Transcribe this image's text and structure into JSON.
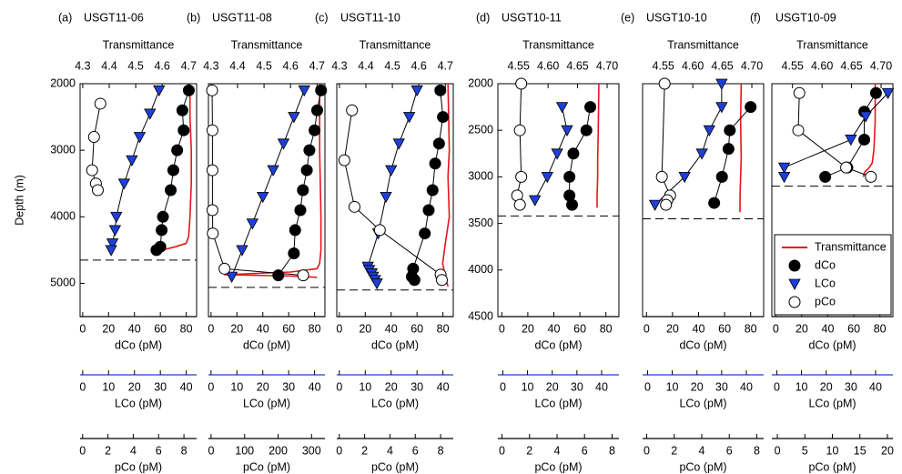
{
  "chart_data": [
    {
      "type": "profile",
      "label": "(a)",
      "title": "USGT11-06",
      "ylabel": "Depth (m)",
      "ylim": [
        2000,
        5500
      ],
      "yticks": [
        2000,
        3000,
        4000,
        5000
      ],
      "bottom_depth": 4650,
      "axes": {
        "transmittance": {
          "label": "Transmittance",
          "xlim": [
            4.29,
            4.73
          ],
          "xticks": [
            4.3,
            4.4,
            4.5,
            4.6,
            4.7
          ],
          "line_color": "#000000"
        },
        "dCo": {
          "label": "dCo (pM)",
          "xlim": [
            -2,
            88
          ],
          "xticks": [
            0,
            20,
            40,
            60,
            80
          ],
          "line_color": "#000000"
        },
        "LCo": {
          "label": "LCo (pM)",
          "xlim": [
            -1,
            44
          ],
          "xticks": [
            0,
            10,
            20,
            30,
            40
          ],
          "line_color": "#1f3fd6"
        },
        "pCo": {
          "label": "pCo (pM)",
          "xlim": [
            -0.2,
            9
          ],
          "xticks": [
            0,
            2,
            4,
            6,
            8
          ],
          "line_color": "#000000"
        }
      },
      "series": [
        {
          "axis": "transmittance",
          "marker": "line",
          "color": "#e8141b",
          "x": [
            4.705,
            4.705,
            4.71,
            4.71,
            4.705,
            4.7,
            4.69,
            4.65,
            4.6,
            4.58
          ],
          "y": [
            2000,
            2500,
            3000,
            3500,
            4000,
            4300,
            4400,
            4450,
            4500,
            4540
          ]
        },
        {
          "axis": "dCo",
          "marker": "filled-circle",
          "color": "#000000",
          "x": [
            82,
            77,
            78,
            73,
            70,
            68,
            62,
            61,
            60,
            57
          ],
          "y": [
            2100,
            2400,
            2700,
            3000,
            3300,
            3600,
            4000,
            4200,
            4450,
            4500
          ]
        },
        {
          "axis": "LCo",
          "marker": "triangle",
          "color": "#1f3fd6",
          "x": [
            29.5,
            26,
            22,
            19,
            16,
            13,
            12.5,
            11.5,
            11
          ],
          "y": [
            2100,
            2450,
            2800,
            3150,
            3500,
            4000,
            4200,
            4400,
            4500
          ]
        },
        {
          "axis": "pCo",
          "marker": "open-circle",
          "color": "#ffffff",
          "x": [
            1.4,
            0.9,
            0.75,
            1.05,
            1.2
          ],
          "y": [
            2300,
            2800,
            3300,
            3500,
            3600
          ]
        }
      ]
    },
    {
      "type": "profile",
      "label": "(b)",
      "title": "USGT11-08",
      "ylim": [
        2000,
        5500
      ],
      "bottom_depth": 5060,
      "axes": {
        "transmittance": {
          "label": "Transmittance",
          "xlim": [
            4.29,
            4.73
          ],
          "xticks": [
            4.3,
            4.4,
            4.5,
            4.6,
            4.7
          ],
          "line_color": "#000000"
        },
        "dCo": {
          "label": "dCo (pM)",
          "xlim": [
            -2,
            88
          ],
          "xticks": [
            0,
            20,
            40,
            60,
            80
          ],
          "line_color": "#000000"
        },
        "LCo": {
          "label": "LCo (pM)",
          "xlim": [
            -1,
            44
          ],
          "xticks": [
            0,
            10,
            20,
            30,
            40
          ],
          "line_color": "#1f3fd6"
        },
        "pCo": {
          "label": "pCo (pM)",
          "xlim": [
            -8,
            340
          ],
          "xticks": [
            0,
            100,
            200,
            300
          ],
          "line_color": "#000000"
        }
      },
      "series": [
        {
          "axis": "transmittance",
          "marker": "line",
          "color": "#e8141b",
          "x": [
            4.71,
            4.71,
            4.715,
            4.715,
            4.71,
            4.7,
            4.6,
            4.35,
            4.6,
            4.7
          ],
          "y": [
            2000,
            3000,
            4000,
            4500,
            4700,
            4780,
            4830,
            4870,
            4890,
            4910
          ]
        },
        {
          "axis": "dCo",
          "marker": "filled-circle",
          "color": "#000000",
          "x": [
            85,
            82,
            80,
            76,
            74,
            71,
            69,
            65,
            64,
            52
          ],
          "y": [
            2100,
            2400,
            2700,
            3000,
            3300,
            3600,
            3900,
            4200,
            4550,
            4880
          ]
        },
        {
          "axis": "LCo",
          "marker": "triangle",
          "color": "#1f3fd6",
          "x": [
            36,
            32,
            28,
            24,
            20,
            16,
            12,
            8
          ],
          "y": [
            2100,
            2500,
            2900,
            3300,
            3700,
            4100,
            4500,
            4900
          ]
        },
        {
          "axis": "pCo",
          "marker": "open-circle",
          "color": "#ffffff",
          "x": [
            3,
            4,
            4,
            4,
            5,
            40,
            275
          ],
          "y": [
            2100,
            2700,
            3300,
            3900,
            4250,
            4780,
            4880
          ]
        }
      ]
    },
    {
      "type": "profile",
      "label": "(c)",
      "title": "USGT11-10",
      "ylim": [
        2000,
        5500
      ],
      "bottom_depth": 5100,
      "axes": {
        "transmittance": {
          "label": "Transmittance",
          "xlim": [
            4.29,
            4.73
          ],
          "xticks": [
            4.3,
            4.4,
            4.5,
            4.6,
            4.7
          ],
          "line_color": "#000000"
        },
        "dCo": {
          "label": "dCo (pM)",
          "xlim": [
            -2,
            88
          ],
          "xticks": [
            0,
            20,
            40,
            60,
            80
          ],
          "line_color": "#000000"
        },
        "LCo": {
          "label": "LCo (pM)",
          "xlim": [
            -1,
            44
          ],
          "xticks": [
            0,
            10,
            20,
            30,
            40
          ],
          "line_color": "#1f3fd6"
        },
        "pCo": {
          "label": "pCo (pM)",
          "xlim": [
            -0.2,
            9
          ],
          "xticks": [
            0,
            2,
            4,
            6,
            8
          ],
          "line_color": "#000000"
        }
      },
      "series": [
        {
          "axis": "transmittance",
          "marker": "line",
          "color": "#e8141b",
          "x": [
            4.71,
            4.715,
            4.71,
            4.715,
            4.7,
            4.69,
            4.7,
            4.71
          ],
          "y": [
            2000,
            3000,
            3400,
            4000,
            4400,
            4700,
            4900,
            5050
          ]
        },
        {
          "axis": "dCo",
          "marker": "filled-circle",
          "color": "#000000",
          "x": [
            78,
            80,
            77,
            74,
            72,
            69,
            66,
            57,
            56,
            58
          ],
          "y": [
            2100,
            2500,
            2900,
            3200,
            3600,
            3900,
            4250,
            4780,
            4900,
            4950
          ]
        },
        {
          "axis": "LCo",
          "marker": "triangle",
          "color": "#1f3fd6",
          "x": [
            30,
            27,
            23,
            20,
            18,
            15,
            11,
            11.5,
            12.5,
            13,
            13.8,
            14.5
          ],
          "y": [
            2100,
            2500,
            2900,
            3300,
            3700,
            4250,
            4750,
            4800,
            4850,
            4900,
            4950,
            5000
          ]
        },
        {
          "axis": "pCo",
          "marker": "open-circle",
          "color": "#ffffff",
          "x": [
            1.0,
            0.4,
            1.2,
            3.2,
            8.0,
            8.1
          ],
          "y": [
            2400,
            3150,
            3850,
            4200,
            4870,
            4950
          ]
        }
      ]
    },
    {
      "type": "profile",
      "label": "(d)",
      "title": "USGT10-11",
      "ylim": [
        2000,
        4500
      ],
      "yticks": [
        2000,
        2500,
        3000,
        3500,
        4000,
        4500
      ],
      "bottom_depth": 3420,
      "axes": {
        "transmittance": {
          "label": "Transmittance",
          "xlim": [
            4.515,
            4.72
          ],
          "xticks": [
            4.55,
            {
              "value": 4.6,
              "label": "4.60"
            },
            4.65,
            {
              "value": 4.7,
              "label": "4.70"
            }
          ],
          "line_color": "#000000"
        },
        "dCo": {
          "label": "dCo (pM)",
          "xlim": [
            -3,
            90
          ],
          "xticks": [
            0,
            20,
            40,
            60,
            80
          ],
          "line_color": "#000000"
        },
        "LCo": {
          "label": "LCo (pM)",
          "xlim": [
            -2,
            47
          ],
          "xticks": [
            0,
            10,
            20,
            30,
            40
          ],
          "line_color": "#1f3fd6"
        },
        "pCo": {
          "label": "pCo (pM)",
          "xlim": [
            -0.3,
            8.5
          ],
          "xticks": [
            0,
            2,
            4,
            6,
            8
          ],
          "line_color": "#000000"
        }
      },
      "series": [
        {
          "axis": "transmittance",
          "marker": "line",
          "color": "#e8141b",
          "x": [
            4.686,
            4.685,
            4.684,
            4.684,
            4.683,
            4.683
          ],
          "y": [
            2000,
            2500,
            2800,
            3000,
            3200,
            3330
          ]
        },
        {
          "axis": "dCo",
          "marker": "filled-circle",
          "color": "#000000",
          "x": [
            68,
            65,
            55,
            52,
            52,
            54
          ],
          "y": [
            2250,
            2500,
            2750,
            3000,
            3200,
            3300
          ]
        },
        {
          "axis": "LCo",
          "marker": "triangle",
          "color": "#1f3fd6",
          "x": [
            24,
            26,
            22,
            18,
            13
          ],
          "y": [
            2250,
            2500,
            2750,
            3000,
            3250
          ]
        },
        {
          "axis": "pCo",
          "marker": "open-circle",
          "color": "#ffffff",
          "x": [
            1.4,
            1.3,
            1.4,
            1.1,
            1.3
          ],
          "y": [
            2000,
            2500,
            3000,
            3200,
            3300
          ]
        }
      ]
    },
    {
      "type": "profile",
      "label": "(e)",
      "title": "USGT10-10",
      "ylim": [
        2000,
        4500
      ],
      "bottom_depth": 3450,
      "axes": {
        "transmittance": {
          "label": "Transmittance",
          "xlim": [
            4.515,
            4.72
          ],
          "xticks": [
            4.55,
            {
              "value": 4.6,
              "label": "4.60"
            },
            4.65,
            {
              "value": 4.7,
              "label": "4.70"
            }
          ],
          "line_color": "#000000"
        },
        "dCo": {
          "label": "dCo (pM)",
          "xlim": [
            -3,
            90
          ],
          "xticks": [
            0,
            20,
            40,
            60,
            80
          ],
          "line_color": "#000000"
        },
        "LCo": {
          "label": "LCo (pM)",
          "xlim": [
            -2,
            47
          ],
          "xticks": [
            0,
            10,
            20,
            30,
            40
          ],
          "line_color": "#1f3fd6"
        },
        "pCo": {
          "label": "pCo (pM)",
          "xlim": [
            -0.3,
            8.5
          ],
          "xticks": [
            0,
            2,
            4,
            6,
            8
          ],
          "line_color": "#000000"
        }
      },
      "series": [
        {
          "axis": "transmittance",
          "marker": "line",
          "color": "#e8141b",
          "x": [
            4.682,
            4.681,
            4.682,
            4.681,
            4.68,
            4.68
          ],
          "y": [
            2000,
            2400,
            2800,
            3000,
            3200,
            3380
          ]
        },
        {
          "axis": "dCo",
          "marker": "filled-circle",
          "color": "#000000",
          "x": [
            80,
            64,
            63,
            58,
            52
          ],
          "y": [
            2250,
            2500,
            2700,
            3000,
            3280
          ]
        },
        {
          "axis": "LCo",
          "marker": "triangle",
          "color": "#1f3fd6",
          "x": [
            30,
            30,
            25,
            22,
            15,
            3
          ],
          "y": [
            2000,
            2250,
            2500,
            2750,
            3000,
            3300
          ]
        },
        {
          "axis": "pCo",
          "marker": "open-circle",
          "color": "#ffffff",
          "x": [
            1.3,
            1.1,
            1.7,
            1.5,
            1.4
          ],
          "y": [
            2000,
            3000,
            3200,
            3250,
            3300
          ]
        }
      ]
    },
    {
      "type": "profile",
      "label": "(f)",
      "title": "USGT10-09",
      "ylim": [
        2000,
        4500
      ],
      "bottom_depth": 3100,
      "axes": {
        "transmittance": {
          "label": "Transmittance",
          "xlim": [
            4.515,
            4.72
          ],
          "xticks": [
            4.55,
            {
              "value": 4.6,
              "label": "4.60"
            },
            4.65,
            {
              "value": 4.7,
              "label": "4.70"
            }
          ],
          "line_color": "#000000"
        },
        "dCo": {
          "label": "dCo (pM)",
          "xlim": [
            -3,
            90
          ],
          "xticks": [
            0,
            20,
            40,
            60,
            80
          ],
          "line_color": "#000000"
        },
        "LCo": {
          "label": "LCo (pM)",
          "xlim": [
            -2,
            47
          ],
          "xticks": [
            0,
            10,
            20,
            30,
            40
          ],
          "line_color": "#1f3fd6"
        },
        "pCo": {
          "label": "pCo (pM)",
          "xlim": [
            -1,
            21
          ],
          "xticks": [
            0,
            5,
            10,
            15,
            20
          ],
          "line_color": "#000000"
        }
      },
      "series": [
        {
          "axis": "transmittance",
          "marker": "line",
          "color": "#e8141b",
          "x": [
            4.69,
            4.69,
            4.688,
            4.685,
            4.68,
            4.672,
            4.67
          ],
          "y": [
            2000,
            2400,
            2700,
            2850,
            2900,
            2950,
            3000
          ]
        },
        {
          "axis": "dCo",
          "marker": "filled-circle",
          "color": "#000000",
          "x": [
            77,
            68,
            68,
            55,
            38
          ],
          "y": [
            2100,
            2300,
            2600,
            2900,
            3000
          ]
        },
        {
          "axis": "LCo",
          "marker": "triangle",
          "color": "#1f3fd6",
          "x": [
            45,
            36,
            30,
            3,
            3
          ],
          "y": [
            2100,
            2350,
            2600,
            2900,
            3000
          ]
        },
        {
          "axis": "pCo",
          "marker": "open-circle",
          "color": "#ffffff",
          "x": [
            4,
            3.8,
            12.5,
            17
          ],
          "y": [
            2100,
            2500,
            2900,
            3000
          ]
        }
      ],
      "legend": {
        "loc": "lower right",
        "entries": [
          {
            "name": "Transmittance",
            "color": "#e8141b",
            "text_color": "#e8141b",
            "marker": "line"
          },
          {
            "name": "dCo",
            "color": "#000000",
            "text_color": "#000000",
            "marker": "filled-circle"
          },
          {
            "name": "LCo",
            "color": "#1f3fd6",
            "text_color": "#1f3fd6",
            "marker": "triangle"
          },
          {
            "name": "pCo",
            "color": "#ffffff",
            "text_color": "#000000",
            "marker": "open-circle"
          }
        ]
      }
    }
  ]
}
